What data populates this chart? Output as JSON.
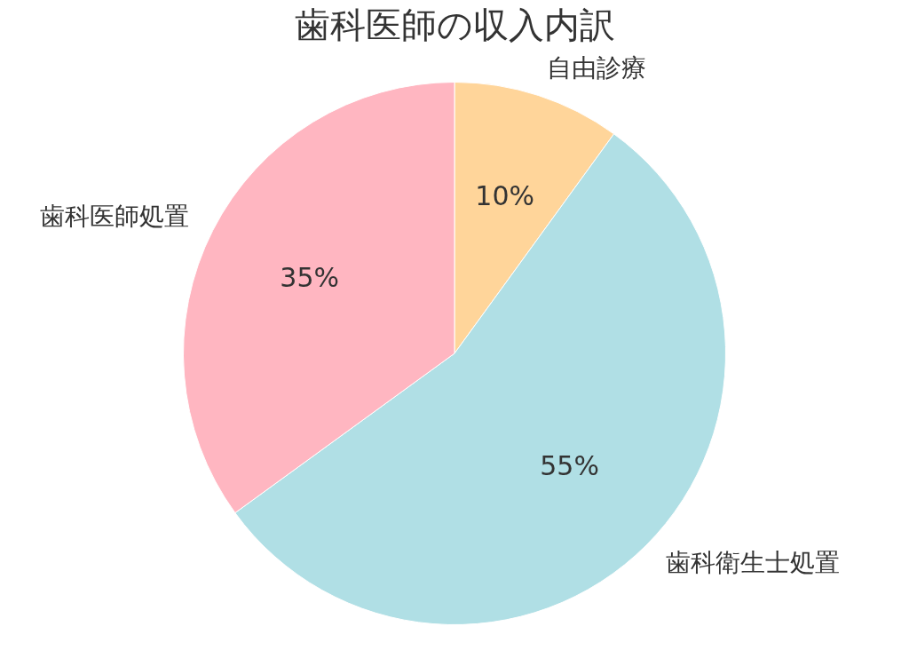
{
  "chart_data": {
    "type": "pie",
    "title": "歯科医師の収入内訳",
    "categories": [
      "自由診療",
      "歯科衛生士処置",
      "歯科医師処置"
    ],
    "values": [
      10,
      55,
      35
    ],
    "colors": [
      "#ffd59a",
      "#b0dfe5",
      "#ffb6c1"
    ],
    "value_labels": [
      "10%",
      "55%",
      "35%"
    ],
    "legend": false
  }
}
